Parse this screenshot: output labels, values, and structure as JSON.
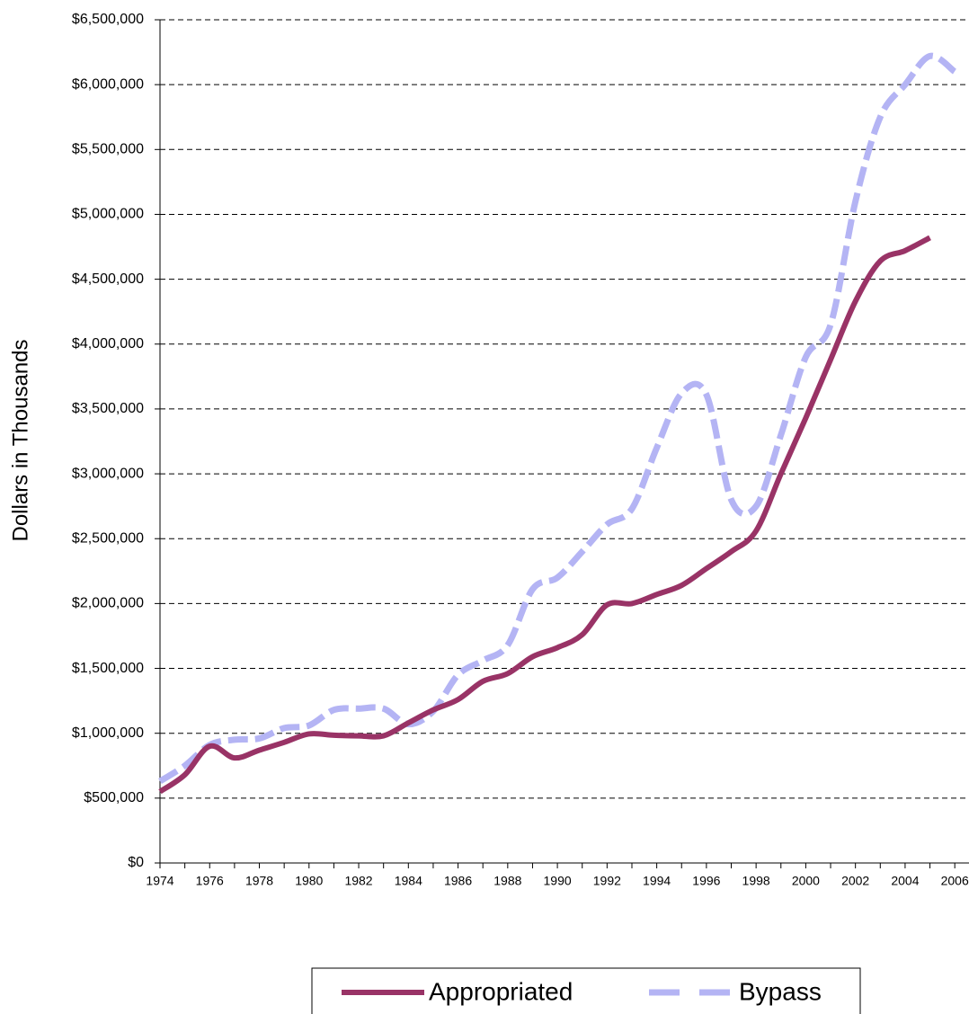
{
  "chart_data": {
    "type": "line",
    "y_axis_label": "Dollars in Thousands",
    "x": [
      1974,
      1975,
      1976,
      1977,
      1978,
      1979,
      1980,
      1981,
      1982,
      1983,
      1984,
      1985,
      1986,
      1987,
      1988,
      1989,
      1990,
      1991,
      1992,
      1993,
      1994,
      1995,
      1996,
      1997,
      1998,
      1999,
      2000,
      2001,
      2002,
      2003,
      2004,
      2005,
      2006
    ],
    "series": [
      {
        "name": "Appropriated",
        "color": "#993366",
        "dashed": false,
        "values": [
          550000,
          680000,
          900000,
          810000,
          870000,
          930000,
          995000,
          985000,
          980000,
          980000,
          1080000,
          1180000,
          1260000,
          1400000,
          1460000,
          1590000,
          1660000,
          1760000,
          1990000,
          2000000,
          2070000,
          2140000,
          2270000,
          2400000,
          2560000,
          3000000,
          3430000,
          3880000,
          4330000,
          4640000,
          4720000,
          4820000,
          null
        ]
      },
      {
        "name": "Bypass",
        "color": "#b4b4f4",
        "dashed": true,
        "values": [
          630000,
          750000,
          910000,
          950000,
          960000,
          1040000,
          1060000,
          1180000,
          1190000,
          1190000,
          1070000,
          1170000,
          1450000,
          1560000,
          1680000,
          2110000,
          2200000,
          2400000,
          2610000,
          2730000,
          3200000,
          3620000,
          3610000,
          2800000,
          2750000,
          3300000,
          3900000,
          4150000,
          5100000,
          5750000,
          6000000,
          6220000,
          6100000
        ]
      }
    ],
    "xlim": [
      1974,
      2006.5
    ],
    "xticks": [
      1974,
      1976,
      1978,
      1980,
      1982,
      1984,
      1986,
      1988,
      1990,
      1992,
      1994,
      1996,
      1998,
      2000,
      2002,
      2004,
      2006
    ],
    "ylim": [
      0,
      6500000
    ],
    "yticks": [
      {
        "value": 0,
        "label": "$0"
      },
      {
        "value": 500000,
        "label": "$500,000"
      },
      {
        "value": 1000000,
        "label": "$1,000,000"
      },
      {
        "value": 1500000,
        "label": "$1,500,000"
      },
      {
        "value": 2000000,
        "label": "$2,000,000"
      },
      {
        "value": 2500000,
        "label": "$2,500,000"
      },
      {
        "value": 3000000,
        "label": "$3,000,000"
      },
      {
        "value": 3500000,
        "label": "$3,500,000"
      },
      {
        "value": 4000000,
        "label": "$4,000,000"
      },
      {
        "value": 4500000,
        "label": "$4,500,000"
      },
      {
        "value": 5000000,
        "label": "$5,000,000"
      },
      {
        "value": 5500000,
        "label": "$5,500,000"
      },
      {
        "value": 6000000,
        "label": "$6,000,000"
      },
      {
        "value": 6500000,
        "label": "$6,500,000"
      }
    ],
    "grid": true,
    "legend": "bottom"
  }
}
